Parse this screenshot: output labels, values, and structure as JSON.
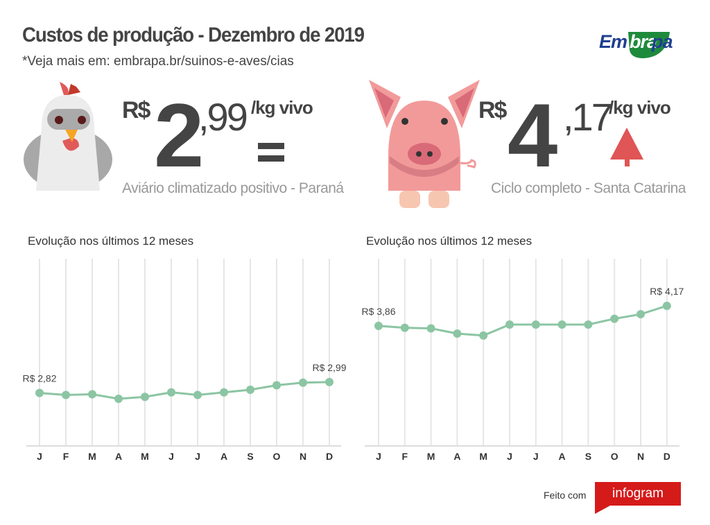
{
  "header": {
    "title": "Custos de produção - Dezembro de 2019",
    "subtitle": "*Veja mais em: embrapa.br/suinos-e-aves/cias",
    "logo_text": "Embrapa"
  },
  "chicken": {
    "currency": "R$",
    "integer": "2",
    "cents": ",99",
    "unit": "/kg vivo",
    "trend": "equal",
    "description": "Aviário climatizado positivo - Paraná"
  },
  "pig": {
    "currency": "R$",
    "integer": "4",
    "cents": ",17",
    "unit": "/kg vivo",
    "trend": "up",
    "trend_color": "#e05555",
    "description": "Ciclo completo - Santa Catarina"
  },
  "footer": {
    "made_with": "Feito com",
    "brand": "infogram"
  },
  "colors": {
    "line": "#8cc5a3",
    "grid": "#e6e6e6",
    "text": "#444444",
    "brand_blue": "#1f3f8f",
    "brand_green": "#1e8a3c",
    "badge_red": "#d51a1a"
  },
  "chart_data": [
    {
      "type": "line",
      "title": "Evolução nos últimos 12 meses",
      "categories": [
        "J",
        "F",
        "M",
        "A",
        "M",
        "J",
        "J",
        "A",
        "S",
        "O",
        "N",
        "D"
      ],
      "values": [
        2.82,
        2.79,
        2.8,
        2.73,
        2.76,
        2.83,
        2.79,
        2.83,
        2.87,
        2.94,
        2.98,
        2.99
      ],
      "labels": [
        {
          "index": 0,
          "text": "R$ 2,82"
        },
        {
          "index": 11,
          "text": "R$ 2,99"
        }
      ],
      "ylim": [
        2,
        4.9
      ],
      "grid": "vertical"
    },
    {
      "type": "line",
      "title": "Evolução nos últimos 12 meses",
      "categories": [
        "J",
        "F",
        "M",
        "A",
        "M",
        "J",
        "J",
        "A",
        "S",
        "O",
        "N",
        "D"
      ],
      "values": [
        3.86,
        3.83,
        3.82,
        3.74,
        3.71,
        3.88,
        3.88,
        3.88,
        3.88,
        3.97,
        4.04,
        4.17
      ],
      "labels": [
        {
          "index": 0,
          "text": "R$ 3,86"
        },
        {
          "index": 11,
          "text": "R$ 4,17"
        }
      ],
      "ylim": [
        2,
        4.9
      ],
      "grid": "vertical"
    }
  ]
}
